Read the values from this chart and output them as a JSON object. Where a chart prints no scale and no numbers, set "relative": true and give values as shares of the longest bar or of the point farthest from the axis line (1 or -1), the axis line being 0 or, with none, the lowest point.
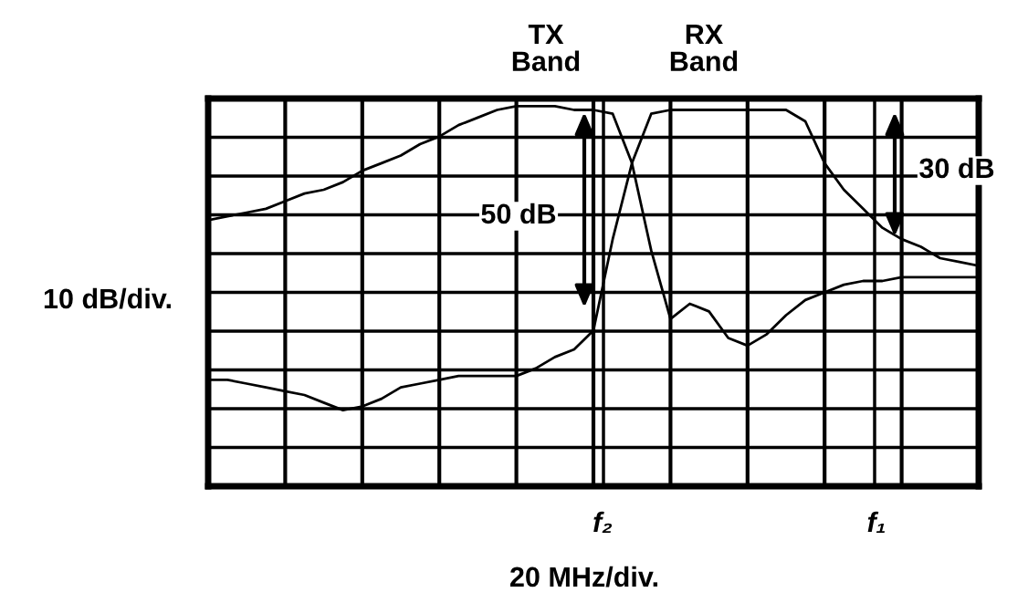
{
  "chart_data": {
    "type": "line",
    "relative": true,
    "xlabel": "20 MHz/div.",
    "ylabel": "10 dB/div.",
    "grid": true,
    "marker": "none",
    "line_style": "solid",
    "annotations": [
      "TX\nBand",
      "RX\nBand",
      "50 dB",
      "30 dB",
      "f₂",
      "f₁"
    ],
    "categories": [
      null,
      null,
      null,
      null,
      null,
      null,
      null,
      null,
      null,
      null,
      null,
      null,
      null,
      null,
      null,
      null,
      null,
      null,
      null,
      null,
      null,
      null,
      null,
      null,
      null,
      null,
      null,
      null,
      null,
      null,
      null,
      null,
      null,
      null,
      null,
      null,
      null,
      null,
      null,
      null,
      null
    ],
    "series": [
      {
        "color": "#000000",
        "values": [
          0.7,
          0.71,
          0.72,
          0.73,
          0.75,
          0.77,
          0.78,
          0.8,
          0.83,
          0.85,
          0.87,
          0.9,
          0.92,
          0.95,
          0.97,
          0.99,
          1,
          1,
          1,
          0.99,
          0.99,
          0.98,
          0.85,
          0.62,
          0.44,
          0.48,
          0.46,
          0.39,
          0.37,
          0.4,
          0.45,
          0.49,
          0.51,
          0.53,
          0.54,
          0.54,
          0.55,
          0.55,
          0.55,
          0.55,
          0.55
        ]
      },
      {
        "color": "#000000",
        "values": [
          0.28,
          0.28,
          0.27,
          0.26,
          0.25,
          0.24,
          0.22,
          0.2,
          0.21,
          0.23,
          0.26,
          0.27,
          0.28,
          0.29,
          0.29,
          0.29,
          0.29,
          0.31,
          0.34,
          0.36,
          0.41,
          0.65,
          0.85,
          0.98,
          0.99,
          0.99,
          0.99,
          0.99,
          0.99,
          0.99,
          0.99,
          0.96,
          0.85,
          0.78,
          0.73,
          0.68,
          0.65,
          0.63,
          0.6,
          0.59,
          0.58
        ]
      }
    ]
  }
}
